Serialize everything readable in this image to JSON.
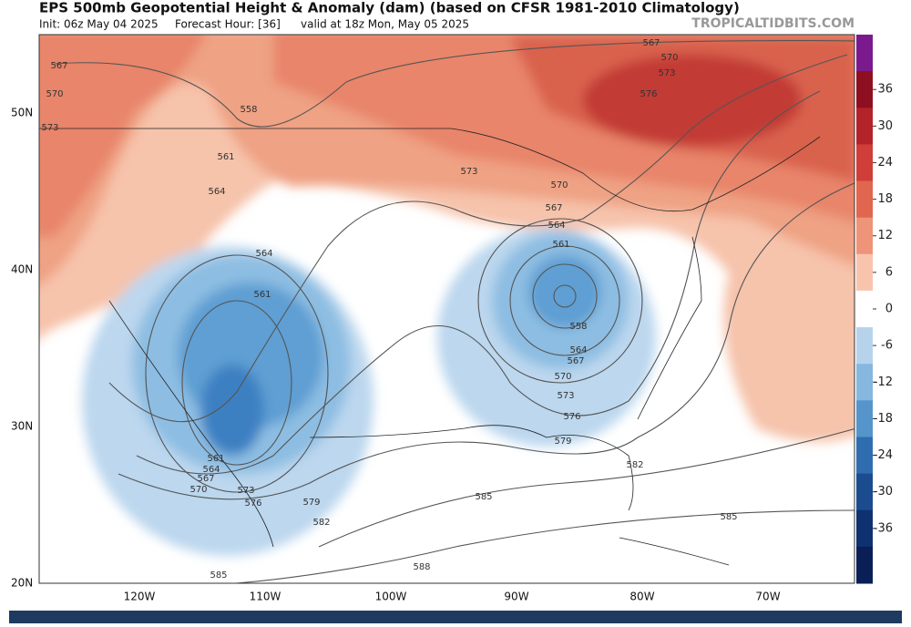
{
  "header": {
    "title": "EPS 500mb Geopotential Height & Anomaly (dam) (based on CFSR 1981-2010 Climatology)",
    "init": "Init: 06z May 04 2025",
    "hour": "Forecast Hour: [36]",
    "valid": "valid at 18z Mon, May 05 2025",
    "brand": "TROPICALTIDBITS.COM"
  },
  "map": {
    "lat_labels": [
      "50N",
      "40N",
      "30N",
      "20N"
    ],
    "lon_labels": [
      "120W",
      "110W",
      "100W",
      "90W",
      "80W",
      "70W"
    ],
    "contour_labels": [
      "567",
      "570",
      "573",
      "558",
      "561",
      "564",
      "564",
      "561",
      "561",
      "564",
      "567",
      "570",
      "573",
      "576",
      "579",
      "582",
      "585",
      "588",
      "585",
      "582",
      "585",
      "579",
      "576",
      "573",
      "570",
      "567",
      "564",
      "558",
      "561",
      "564",
      "567",
      "570",
      "573",
      "567",
      "570",
      "573",
      "576"
    ]
  },
  "colorbar": {
    "ticks": [
      36,
      30,
      24,
      18,
      12,
      6,
      0,
      -6,
      -12,
      -18,
      -24,
      -30,
      -36
    ]
  }
}
